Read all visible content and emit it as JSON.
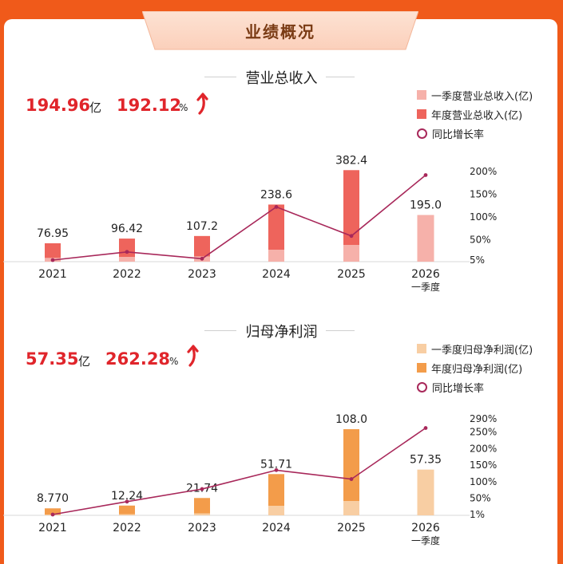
{
  "header": {
    "title": "业绩概况"
  },
  "colors": {
    "background": "#f05a1a",
    "revenue_q1": "#f6b1aa",
    "revenue_annual": "#ee645c",
    "profit_q1": "#f8ceA3",
    "profit_annual": "#f39c4a",
    "growth_line": "#a8285a",
    "stat_red": "#e0252b"
  },
  "revenue": {
    "title": "营业总收入",
    "headline": {
      "value": "194.96",
      "unit": "亿",
      "growth": "192.12",
      "growth_unit": "%"
    },
    "icons": {
      "trend": "up-arrow-icon"
    }
  },
  "profit": {
    "title": "归母净利润",
    "headline": {
      "value": "57.35",
      "unit": "亿",
      "growth": "262.28",
      "growth_unit": "%"
    },
    "icons": {
      "trend": "up-arrow-icon"
    }
  },
  "chart_data": [
    {
      "type": "bar",
      "title": "营业总收入",
      "categories": [
        "2021",
        "2022",
        "2023",
        "2024",
        "2025",
        "2026"
      ],
      "category_sublabels": [
        "",
        "",
        "",
        "",
        "",
        "一季度"
      ],
      "series": [
        {
          "name": "一季度营业总收入(亿)",
          "values": [
            16,
            20,
            22,
            50,
            70,
            195.0
          ]
        },
        {
          "name": "年度营业总收入(亿)",
          "values": [
            76.95,
            96.42,
            107.2,
            238.6,
            382.4,
            null
          ]
        },
        {
          "name": "同比增长率",
          "kind": "line",
          "axis": "right",
          "values": [
            5,
            23,
            8,
            122,
            58,
            192.12
          ]
        }
      ],
      "bar_labels": [
        "76.95",
        "96.42",
        "107.2",
        "238.6",
        "382.4",
        "195.0"
      ],
      "y_right_ticks": [
        "200%",
        "150%",
        "100%",
        "50%",
        "5%"
      ],
      "y_right_range": [
        5,
        200
      ],
      "legend_position": "top-right"
    },
    {
      "type": "bar",
      "title": "归母净利润",
      "categories": [
        "2021",
        "2022",
        "2023",
        "2024",
        "2025",
        "2026"
      ],
      "category_sublabels": [
        "",
        "",
        "",
        "",
        "",
        "一季度"
      ],
      "series": [
        {
          "name": "一季度归母净利润(亿)",
          "values": [
            1,
            1.5,
            2.5,
            12,
            18,
            57.35
          ]
        },
        {
          "name": "年度归母净利润(亿)",
          "values": [
            8.77,
            12.24,
            21.74,
            51.71,
            108.0,
            null
          ]
        },
        {
          "name": "同比增长率",
          "kind": "line",
          "axis": "right",
          "values": [
            1,
            40,
            78,
            135,
            108,
            262.28
          ]
        }
      ],
      "bar_labels": [
        "8.770",
        "12.24",
        "21.74",
        "51.71",
        "108.0",
        "57.35"
      ],
      "y_right_ticks": [
        "290%",
        "250%",
        "200%",
        "150%",
        "100%",
        "50%",
        "1%"
      ],
      "y_right_range": [
        1,
        290
      ],
      "legend_position": "top-right"
    }
  ]
}
